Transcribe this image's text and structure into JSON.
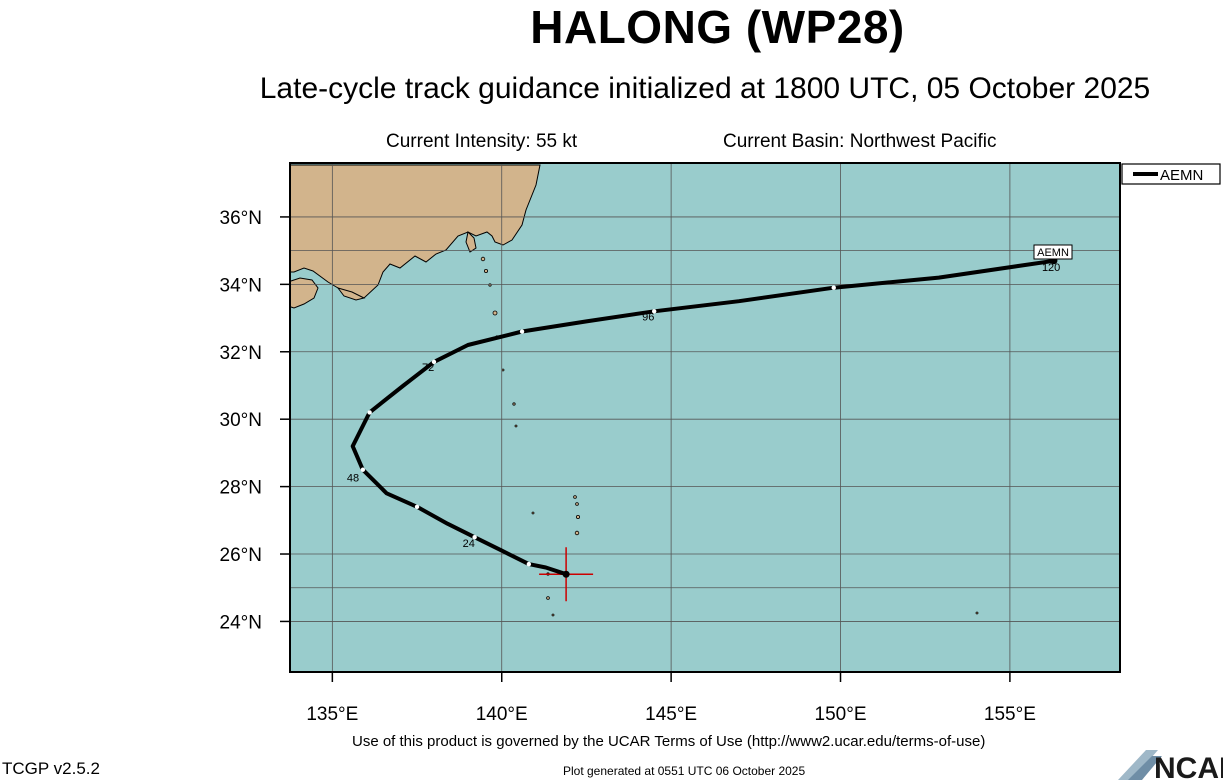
{
  "header": {
    "title": "HALONG (WP28)",
    "subtitle": "Late-cycle track guidance initialized at 1800 UTC, 05 October 2025",
    "current_intensity": "Current Intensity: 55 kt",
    "current_basin": "Current Basin: Northwest Pacific"
  },
  "map": {
    "lon_range": [
      133.75,
      158.25
    ],
    "lat_range": [
      22.5,
      37.6
    ],
    "ocean_color": "#99cccc",
    "land_color": "#d2b48c",
    "grid": true,
    "lon_ticks": [
      {
        "value": 135,
        "label": "135°E"
      },
      {
        "value": 140,
        "label": "140°E"
      },
      {
        "value": 145,
        "label": "145°E"
      },
      {
        "value": 150,
        "label": "150°E"
      },
      {
        "value": 155,
        "label": "155°E"
      }
    ],
    "lat_ticks": [
      {
        "value": 24,
        "label": "24°N"
      },
      {
        "value": 26,
        "label": "26°N"
      },
      {
        "value": 28,
        "label": "28°N"
      },
      {
        "value": 30,
        "label": "30°N"
      },
      {
        "value": 32,
        "label": "32°N"
      },
      {
        "value": 34,
        "label": "34°N"
      },
      {
        "value": 36,
        "label": "36°N"
      }
    ]
  },
  "legend": {
    "placement": "top-right",
    "entries": [
      {
        "name": "AEMN",
        "color": "#000000"
      }
    ]
  },
  "storm": {
    "current_position": {
      "lon": 141.9,
      "lat": 25.4
    },
    "marker_color": "#cc0000"
  },
  "track": {
    "name": "AEMN",
    "end_label": "AEMN",
    "color": "#000000",
    "points": [
      {
        "lon": 141.9,
        "lat": 25.4
      },
      {
        "lon": 141.3,
        "lat": 25.6
      },
      {
        "lon": 140.8,
        "lat": 25.7
      },
      {
        "lon": 140.0,
        "lat": 26.1
      },
      {
        "lon": 139.2,
        "lat": 26.5
      },
      {
        "lon": 138.4,
        "lat": 26.9
      },
      {
        "lon": 137.5,
        "lat": 27.4
      },
      {
        "lon": 136.6,
        "lat": 27.8
      },
      {
        "lon": 135.9,
        "lat": 28.5
      },
      {
        "lon": 135.6,
        "lat": 29.2
      },
      {
        "lon": 136.1,
        "lat": 30.2
      },
      {
        "lon": 137.1,
        "lat": 31.0
      },
      {
        "lon": 138.0,
        "lat": 31.7
      },
      {
        "lon": 139.0,
        "lat": 32.2
      },
      {
        "lon": 140.6,
        "lat": 32.6
      },
      {
        "lon": 142.5,
        "lat": 32.9
      },
      {
        "lon": 144.5,
        "lat": 33.2
      },
      {
        "lon": 147.0,
        "lat": 33.5
      },
      {
        "lon": 149.8,
        "lat": 33.9
      },
      {
        "lon": 152.9,
        "lat": 34.2
      },
      {
        "lon": 156.3,
        "lat": 34.7
      }
    ],
    "markers": [
      {
        "lon": 140.8,
        "lat": 25.7
      },
      {
        "lon": 139.2,
        "lat": 26.5
      },
      {
        "lon": 137.5,
        "lat": 27.4
      },
      {
        "lon": 135.9,
        "lat": 28.5
      },
      {
        "lon": 136.1,
        "lat": 30.2
      },
      {
        "lon": 138.0,
        "lat": 31.7
      },
      {
        "lon": 140.6,
        "lat": 32.6
      },
      {
        "lon": 144.5,
        "lat": 33.2
      },
      {
        "lon": 149.8,
        "lat": 33.9
      },
      {
        "lon": 156.3,
        "lat": 34.7
      }
    ],
    "hour_labels": [
      {
        "text": "24",
        "lon": 139.2,
        "lat": 26.5
      },
      {
        "text": "48",
        "lon": 135.9,
        "lat": 28.5
      },
      {
        "text": "72",
        "lon": 138.0,
        "lat": 31.7
      },
      {
        "text": "96",
        "lon": 144.5,
        "lat": 33.2
      },
      {
        "text": "120",
        "lon": 156.3,
        "lat": 34.7
      }
    ]
  },
  "footer": {
    "terms": "Use of this product is governed by the UCAR Terms of Use (http://www2.ucar.edu/terms-of-use)",
    "version": "TCGP v2.5.2",
    "generated": "Plot generated at 0551 UTC   06 October 2025",
    "logo_text": "NCAR"
  }
}
